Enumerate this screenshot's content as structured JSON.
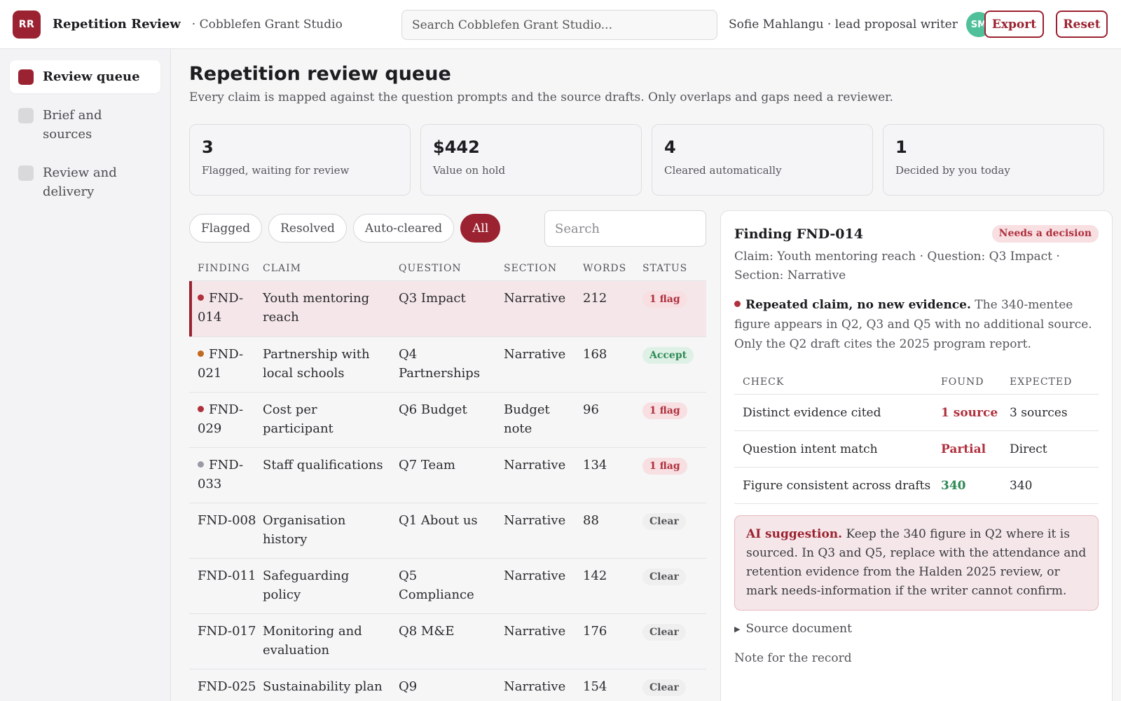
{
  "header": {
    "logo_text": "RR",
    "app_title": "Repetition Review",
    "workspace": "· Cobblefen Grant Studio",
    "search_placeholder": "Search Cobblefen Grant Studio...",
    "user_label": "Sofie Mahlangu · lead proposal writer",
    "avatar_initials": "SM",
    "export_label": "Export",
    "reset_label": "Reset"
  },
  "sidebar": {
    "items": [
      {
        "label": "Review queue",
        "active": true
      },
      {
        "label": "Brief and sources",
        "active": false
      },
      {
        "label": "Review and delivery",
        "active": false
      }
    ]
  },
  "main": {
    "title": "Repetition review queue",
    "subtitle": "Every claim is mapped against the question prompts and the source drafts. Only overlaps and gaps need a reviewer.",
    "stats": [
      {
        "value": "3",
        "label": "Flagged, waiting for review"
      },
      {
        "value": "$442",
        "label": "Value on hold"
      },
      {
        "value": "4",
        "label": "Cleared automatically"
      },
      {
        "value": "1",
        "label": "Decided by you today"
      }
    ],
    "filters": [
      "Flagged",
      "Resolved",
      "Auto-cleared",
      "All"
    ],
    "active_filter": "All",
    "search_placeholder": "Search",
    "columns": [
      "FINDING",
      "CLAIM",
      "QUESTION",
      "SECTION",
      "WORDS",
      "STATUS"
    ],
    "rows": [
      {
        "id": "FND-014",
        "id_display": "FND-\n014",
        "claim": "Youth mentoring reach",
        "question": "Q3 Impact",
        "section": "Narrative",
        "words": "212",
        "status": "1 flag",
        "status_kind": "flag",
        "dot": "#b0303d",
        "selected": true
      },
      {
        "id": "FND-021",
        "claim": "Partnership with local schools",
        "question": "Q4 Partnerships",
        "section": "Narrative",
        "words": "168",
        "status": "Accept",
        "status_kind": "accept",
        "dot": "#c06a1f",
        "selected": false
      },
      {
        "id": "FND-029",
        "claim": "Cost per participant",
        "question": "Q6 Budget",
        "section": "Budget note",
        "words": "96",
        "status": "1 flag",
        "status_kind": "flag",
        "dot": "#b0303d",
        "selected": false
      },
      {
        "id": "FND-033",
        "claim": "Staff qualifications",
        "question": "Q7 Team",
        "section": "Narrative",
        "words": "134",
        "status": "1 flag",
        "status_kind": "flag",
        "dot": "#9a9aa6",
        "selected": false
      },
      {
        "id": "FND-008",
        "claim": "Organisation history",
        "question": "Q1 About us",
        "section": "Narrative",
        "words": "88",
        "status": "Clear",
        "status_kind": "clear",
        "dot": "",
        "selected": false
      },
      {
        "id": "FND-011",
        "claim": "Safeguarding policy",
        "question": "Q5 Compliance",
        "section": "Narrative",
        "words": "142",
        "status": "Clear",
        "status_kind": "clear",
        "dot": "",
        "selected": false
      },
      {
        "id": "FND-017",
        "claim": "Monitoring and evaluation",
        "question": "Q8 M&E",
        "section": "Narrative",
        "words": "176",
        "status": "Clear",
        "status_kind": "clear",
        "dot": "",
        "selected": false
      },
      {
        "id": "FND-025",
        "claim": "Sustainability plan",
        "question": "Q9",
        "section": "Narrative",
        "words": "154",
        "status": "Clear",
        "status_kind": "clear",
        "dot": "",
        "selected": false
      }
    ]
  },
  "detail": {
    "title": "Finding FND-014",
    "badge": "Needs a decision",
    "meta": "Claim: Youth mentoring reach · Question: Q3 Impact · Section: Narrative",
    "finding_bold": "Repeated claim, no new evidence.",
    "finding_text": " The 340-mentee figure appears in Q2, Q3 and Q5 with no additional source. Only the Q2 draft cites the 2025 program report.",
    "check_columns": [
      "CHECK",
      "FOUND",
      "EXPECTED"
    ],
    "checks": [
      {
        "check": "Distinct evidence cited",
        "found": "1 source",
        "expected": "3 sources",
        "tone": "red"
      },
      {
        "check": "Question intent match",
        "found": "Partial",
        "expected": "Direct",
        "tone": "red"
      },
      {
        "check": "Figure consistent across drafts",
        "found": "340",
        "expected": "340",
        "tone": "green"
      }
    ],
    "ai_label": "AI suggestion.",
    "ai_text": " Keep the 340 figure in Q2 where it is sourced. In Q3 and Q5, replace with the attendance and retention evidence from the Halden 2025 review, or mark needs-information if the writer cannot confirm.",
    "source_label": "Source document",
    "note_label": "Note for the record"
  }
}
